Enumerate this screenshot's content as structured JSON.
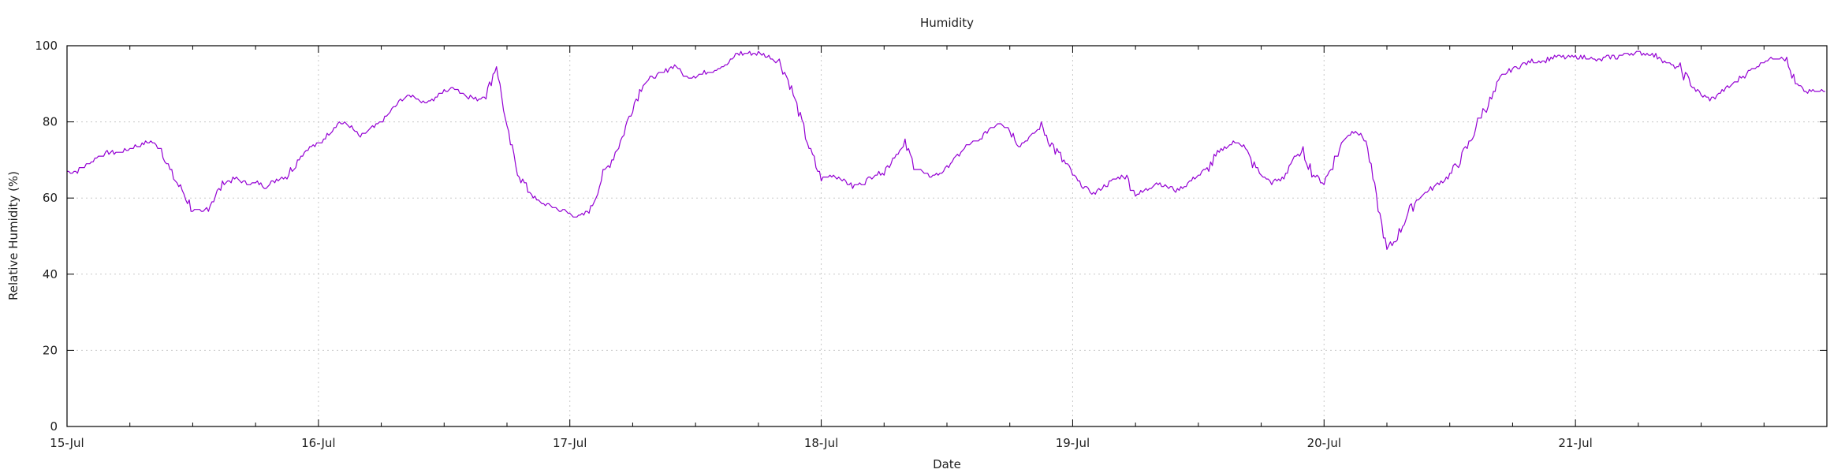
{
  "chart_data": {
    "type": "line",
    "title": "Humidity",
    "xlabel": "Date",
    "ylabel": "Relative Humidity (%)",
    "ylim": [
      0,
      100
    ],
    "yticks": [
      0,
      20,
      40,
      60,
      80,
      100
    ],
    "xlim": [
      "2014-07-15 00:00",
      "2014-07-21 23:59"
    ],
    "xtick_labels": [
      "15-Jul",
      "16-Jul",
      "17-Jul",
      "18-Jul",
      "19-Jul",
      "20-Jul",
      "21-Jul"
    ],
    "grid": true,
    "color": "#9400d3",
    "series": [
      {
        "values_x_days": "",
        "x": [
          "15-Jul 00:00",
          "15-Jul 01:00",
          "15-Jul 02:00",
          "15-Jul 03:00",
          "15-Jul 04:00",
          "15-Jul 05:00",
          "15-Jul 06:00",
          "15-Jul 07:00",
          "15-Jul 08:00",
          "15-Jul 09:00",
          "15-Jul 10:00",
          "15-Jul 11:00",
          "15-Jul 12:00",
          "15-Jul 13:00",
          "15-Jul 14:00",
          "15-Jul 15:00",
          "15-Jul 16:00",
          "15-Jul 17:00",
          "15-Jul 18:00",
          "15-Jul 19:00",
          "15-Jul 20:00",
          "15-Jul 21:00",
          "15-Jul 22:00",
          "15-Jul 23:00",
          "16-Jul 00:00",
          "16-Jul 01:00",
          "16-Jul 02:00",
          "16-Jul 03:00",
          "16-Jul 04:00",
          "16-Jul 05:00",
          "16-Jul 06:00",
          "16-Jul 07:00",
          "16-Jul 08:00",
          "16-Jul 09:00",
          "16-Jul 10:00",
          "16-Jul 11:00",
          "16-Jul 12:00",
          "16-Jul 13:00",
          "16-Jul 14:00",
          "16-Jul 15:00",
          "16-Jul 16:00",
          "16-Jul 17:00",
          "16-Jul 18:00",
          "16-Jul 19:00",
          "16-Jul 20:00",
          "16-Jul 21:00",
          "16-Jul 22:00",
          "16-Jul 23:00",
          "17-Jul 00:00",
          "17-Jul 01:00",
          "17-Jul 02:00",
          "17-Jul 03:00",
          "17-Jul 04:00",
          "17-Jul 05:00",
          "17-Jul 06:00",
          "17-Jul 07:00",
          "17-Jul 08:00",
          "17-Jul 09:00",
          "17-Jul 10:00",
          "17-Jul 11:00",
          "17-Jul 12:00",
          "17-Jul 13:00",
          "17-Jul 14:00",
          "17-Jul 15:00",
          "17-Jul 16:00",
          "17-Jul 17:00",
          "17-Jul 18:00",
          "17-Jul 19:00",
          "17-Jul 20:00",
          "17-Jul 21:00",
          "17-Jul 22:00",
          "17-Jul 23:00",
          "18-Jul 00:00",
          "18-Jul 01:00",
          "18-Jul 02:00",
          "18-Jul 03:00",
          "18-Jul 04:00",
          "18-Jul 05:00",
          "18-Jul 06:00",
          "18-Jul 07:00",
          "18-Jul 08:00",
          "18-Jul 09:00",
          "18-Jul 10:00",
          "18-Jul 11:00",
          "18-Jul 12:00",
          "18-Jul 13:00",
          "18-Jul 14:00",
          "18-Jul 15:00",
          "18-Jul 16:00",
          "18-Jul 17:00",
          "18-Jul 18:00",
          "18-Jul 19:00",
          "18-Jul 20:00",
          "18-Jul 21:00",
          "18-Jul 22:00",
          "18-Jul 23:00",
          "19-Jul 00:00",
          "19-Jul 01:00",
          "19-Jul 02:00",
          "19-Jul 03:00",
          "19-Jul 04:00",
          "19-Jul 05:00",
          "19-Jul 06:00",
          "19-Jul 07:00",
          "19-Jul 08:00",
          "19-Jul 09:00",
          "19-Jul 10:00",
          "19-Jul 11:00",
          "19-Jul 12:00",
          "19-Jul 13:00",
          "19-Jul 14:00",
          "19-Jul 15:00",
          "19-Jul 16:00",
          "19-Jul 17:00",
          "19-Jul 18:00",
          "19-Jul 19:00",
          "19-Jul 20:00",
          "19-Jul 21:00",
          "19-Jul 22:00",
          "19-Jul 23:00",
          "20-Jul 00:00",
          "20-Jul 01:00",
          "20-Jul 02:00",
          "20-Jul 03:00",
          "20-Jul 04:00",
          "20-Jul 05:00",
          "20-Jul 06:00",
          "20-Jul 07:00",
          "20-Jul 08:00",
          "20-Jul 09:00",
          "20-Jul 10:00",
          "20-Jul 11:00",
          "20-Jul 12:00",
          "20-Jul 13:00",
          "20-Jul 14:00",
          "20-Jul 15:00",
          "20-Jul 16:00",
          "20-Jul 17:00",
          "20-Jul 18:00",
          "20-Jul 19:00",
          "20-Jul 20:00",
          "20-Jul 21:00",
          "20-Jul 22:00",
          "20-Jul 23:00",
          "21-Jul 00:00",
          "21-Jul 01:00",
          "21-Jul 02:00",
          "21-Jul 03:00",
          "21-Jul 04:00",
          "21-Jul 05:00",
          "21-Jul 06:00",
          "21-Jul 07:00",
          "21-Jul 08:00",
          "21-Jul 09:00",
          "21-Jul 10:00",
          "21-Jul 11:00",
          "21-Jul 12:00",
          "21-Jul 13:00",
          "21-Jul 14:00",
          "21-Jul 15:00",
          "21-Jul 16:00",
          "21-Jul 17:00",
          "21-Jul 18:00",
          "21-Jul 19:00",
          "21-Jul 20:00",
          "21-Jul 21:00",
          "21-Jul 22:00",
          "21-Jul 23:00"
        ],
        "values": [
          67,
          67,
          69,
          71,
          72,
          72,
          73,
          74,
          75,
          73,
          66,
          62,
          57,
          56,
          60,
          64,
          65,
          64,
          64,
          63,
          65,
          66,
          70,
          73,
          74,
          77,
          80,
          79,
          76,
          78,
          80,
          83,
          86,
          87,
          85,
          86,
          88,
          89,
          87,
          86,
          87,
          95,
          78,
          67,
          62,
          59,
          58,
          57,
          56,
          55,
          57,
          65,
          70,
          76,
          84,
          90,
          92,
          93,
          95,
          92,
          92,
          93,
          94,
          95,
          98,
          98,
          98,
          97,
          96,
          90,
          81,
          72,
          65,
          66,
          65,
          63,
          64,
          66,
          67,
          71,
          74,
          68,
          66,
          66,
          68,
          71,
          74,
          75,
          78,
          80,
          78,
          74,
          76,
          79,
          74,
          70,
          66,
          63,
          61,
          63,
          65,
          66,
          61,
          62,
          64,
          63,
          62,
          64,
          66,
          68,
          72,
          74,
          75,
          70,
          66,
          64,
          65,
          70,
          72,
          66,
          64,
          70,
          76,
          78,
          75,
          60,
          46,
          50,
          56,
          60,
          62,
          64,
          66,
          70,
          75,
          82,
          86,
          92,
          94,
          95,
          96,
          96,
          97,
          97,
          97,
          97,
          96,
          97,
          97,
          98,
          98,
          98,
          97,
          95,
          94,
          90,
          87,
          86,
          88,
          90,
          92,
          94,
          96,
          97,
          97,
          90,
          88,
          88
        ]
      }
    ]
  }
}
